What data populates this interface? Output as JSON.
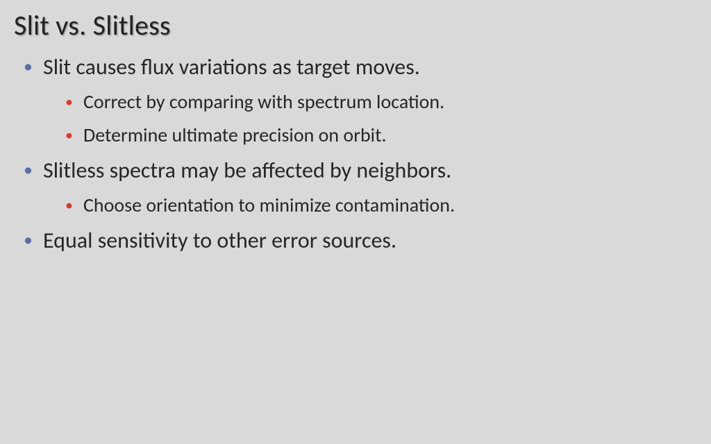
{
  "slide": {
    "title": "Slit vs. Slitless",
    "background_color": "#d9d9d9",
    "title_color": "#222222",
    "title_fontsize": 40,
    "body_text_color": "#262626",
    "bullet_level1_color": "#5b6ea3",
    "bullet_level2_color": "#d93b2b",
    "bullet_level1_fontsize": 32,
    "bullet_level2_fontsize": 28,
    "items": [
      {
        "text": "Slit causes flux variations as target moves.",
        "children": [
          {
            "text": "Correct by comparing with spectrum location."
          },
          {
            "text": "Determine ultimate precision on orbit."
          }
        ]
      },
      {
        "text": "Slitless spectra may be affected by neighbors.",
        "children": [
          {
            "text": "Choose orientation to minimize contamination."
          }
        ]
      },
      {
        "text": "Equal sensitivity to other error sources.",
        "children": []
      }
    ]
  }
}
